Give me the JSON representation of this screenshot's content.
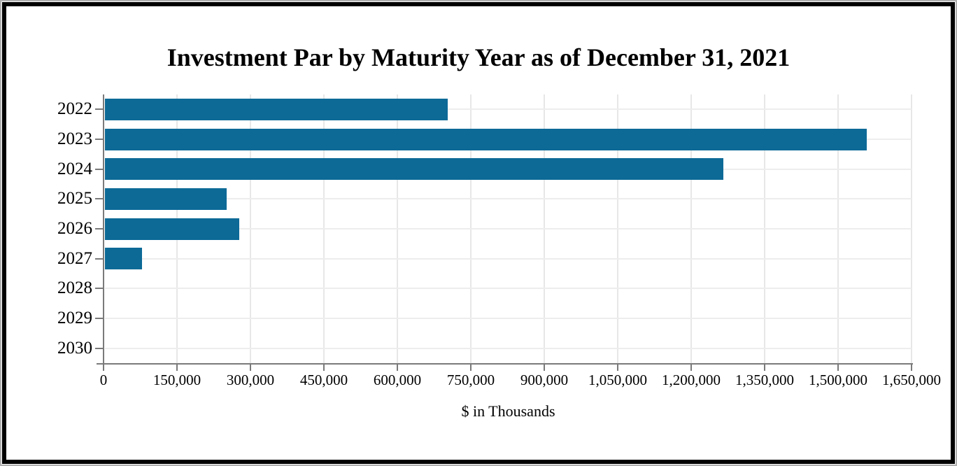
{
  "chart_data": {
    "type": "bar",
    "orientation": "horizontal",
    "title": "Investment Par by Maturity Year as of December 31, 2021",
    "xlabel": "$ in Thousands",
    "categories": [
      "2022",
      "2023",
      "2024",
      "2025",
      "2026",
      "2027",
      "2028",
      "2029",
      "2030"
    ],
    "values": [
      700000,
      1556000,
      1263000,
      248000,
      274000,
      75000,
      0,
      0,
      0
    ],
    "xlim": [
      0,
      1650000
    ],
    "xticks": [
      0,
      150000,
      300000,
      450000,
      600000,
      750000,
      900000,
      1050000,
      1200000,
      1350000,
      1500000,
      1650000
    ],
    "xtick_labels": [
      "0",
      "150,000",
      "300,000",
      "450,000",
      "600,000",
      "750,000",
      "900,000",
      "1,050,000",
      "1,200,000",
      "1,350,000",
      "1,500,000",
      "1,650,000"
    ],
    "grid": true,
    "legend": false,
    "colors": {
      "bar": "#0d6a97",
      "axis": "#7a7a7a",
      "grid_vertical": "#e7e7e7",
      "grid_horizontal": "#ededed",
      "text": "#000000",
      "frame_border": "#000000",
      "edge_line": "#b0b0b0"
    }
  }
}
